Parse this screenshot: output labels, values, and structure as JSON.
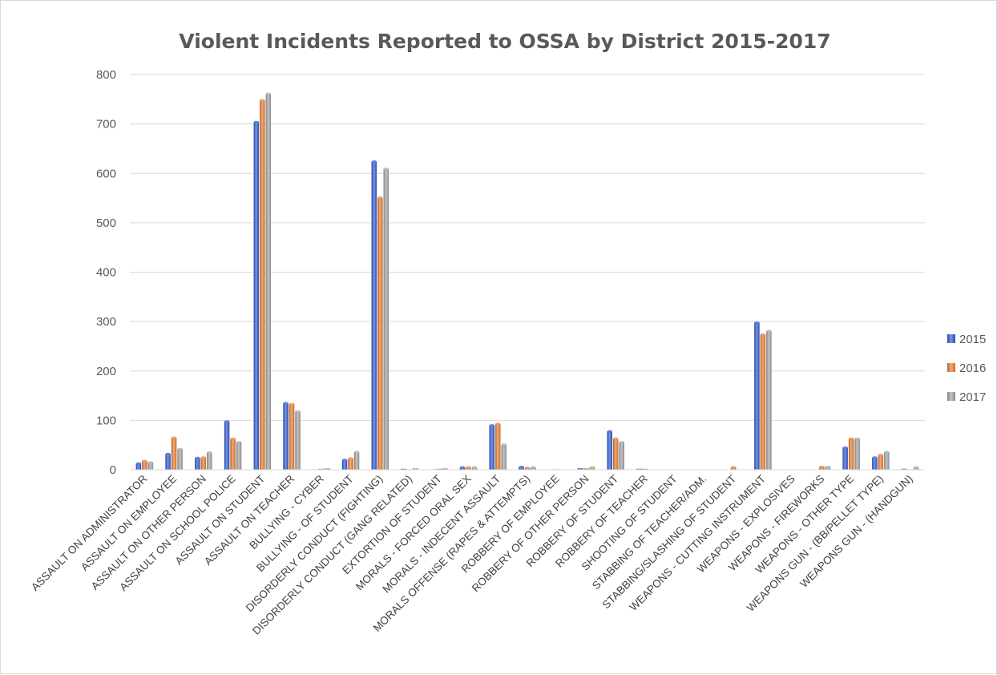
{
  "chart_data": {
    "type": "bar",
    "title": "Violent Incidents Reported to OSSA by District 2015-2017",
    "xlabel": "",
    "ylabel": "",
    "ylim": [
      0,
      800
    ],
    "yticks": [
      0,
      100,
      200,
      300,
      400,
      500,
      600,
      700,
      800
    ],
    "grid": true,
    "legend_position": "right",
    "categories": [
      "ASSAULT ON ADMINISTRATOR",
      "ASSAULT ON EMPLOYEE",
      "ASSAULT ON OTHER PERSON",
      "ASSAULT ON SCHOOL POLICE",
      "ASSAULT ON STUDENT",
      "ASSAULT ON TEACHER",
      "BULLYING - CYBER",
      "BULLYING - OF STUDENT",
      "DISORDERLY CONDUCT (FIGHTING)",
      "DISORDERLY CONDUCT (GANG RELATED)",
      "EXTORTION OF STUDENT",
      "MORALS - FORCED ORAL SEX",
      "MORALS - INDECENT ASSAULT",
      "MORALS OFFENSE (RAPES & ATTEMPTS)",
      "ROBBERY OF EMPLOYEE",
      "ROBBERY OF OTHER PERSON",
      "ROBBERY OF STUDENT",
      "ROBBERY OF TEACHER",
      "SHOOTING OF STUDENT",
      "STABBING OF TEACHER/ADM.",
      "STABBING/SLASHING OF STUDENT",
      "WEAPONS - CUTTING INSTRUMENT",
      "WEAPONS - EXPLOSIVES",
      "WEAPONS - FIREWORKS",
      "WEAPONS - OTHER TYPE",
      "WEAPONS GUN - (BB/PELLET TYPE)",
      "WEAPONS GUN - (HANDGUN)"
    ],
    "series": [
      {
        "name": "2015",
        "color": "#2e5bd6",
        "values": [
          13,
          32,
          24,
          98,
          704,
          135,
          1,
          20,
          624,
          2,
          1,
          5,
          90,
          6,
          0,
          3,
          78,
          2,
          0,
          0,
          0,
          298,
          0,
          0,
          45,
          25,
          2
        ]
      },
      {
        "name": "2016",
        "color": "#ed7d31",
        "values": [
          18,
          65,
          25,
          63,
          748,
          133,
          2,
          23,
          551,
          1,
          2,
          5,
          93,
          4,
          1,
          3,
          63,
          2,
          0,
          0,
          5,
          274,
          0,
          6,
          63,
          30,
          1
        ]
      },
      {
        "name": "2017",
        "color": "#a5a5a5",
        "values": [
          15,
          42,
          35,
          56,
          761,
          118,
          3,
          36,
          609,
          3,
          3,
          5,
          51,
          5,
          0,
          5,
          56,
          0,
          0,
          0,
          0,
          281,
          0,
          6,
          63,
          36,
          5
        ]
      }
    ]
  }
}
